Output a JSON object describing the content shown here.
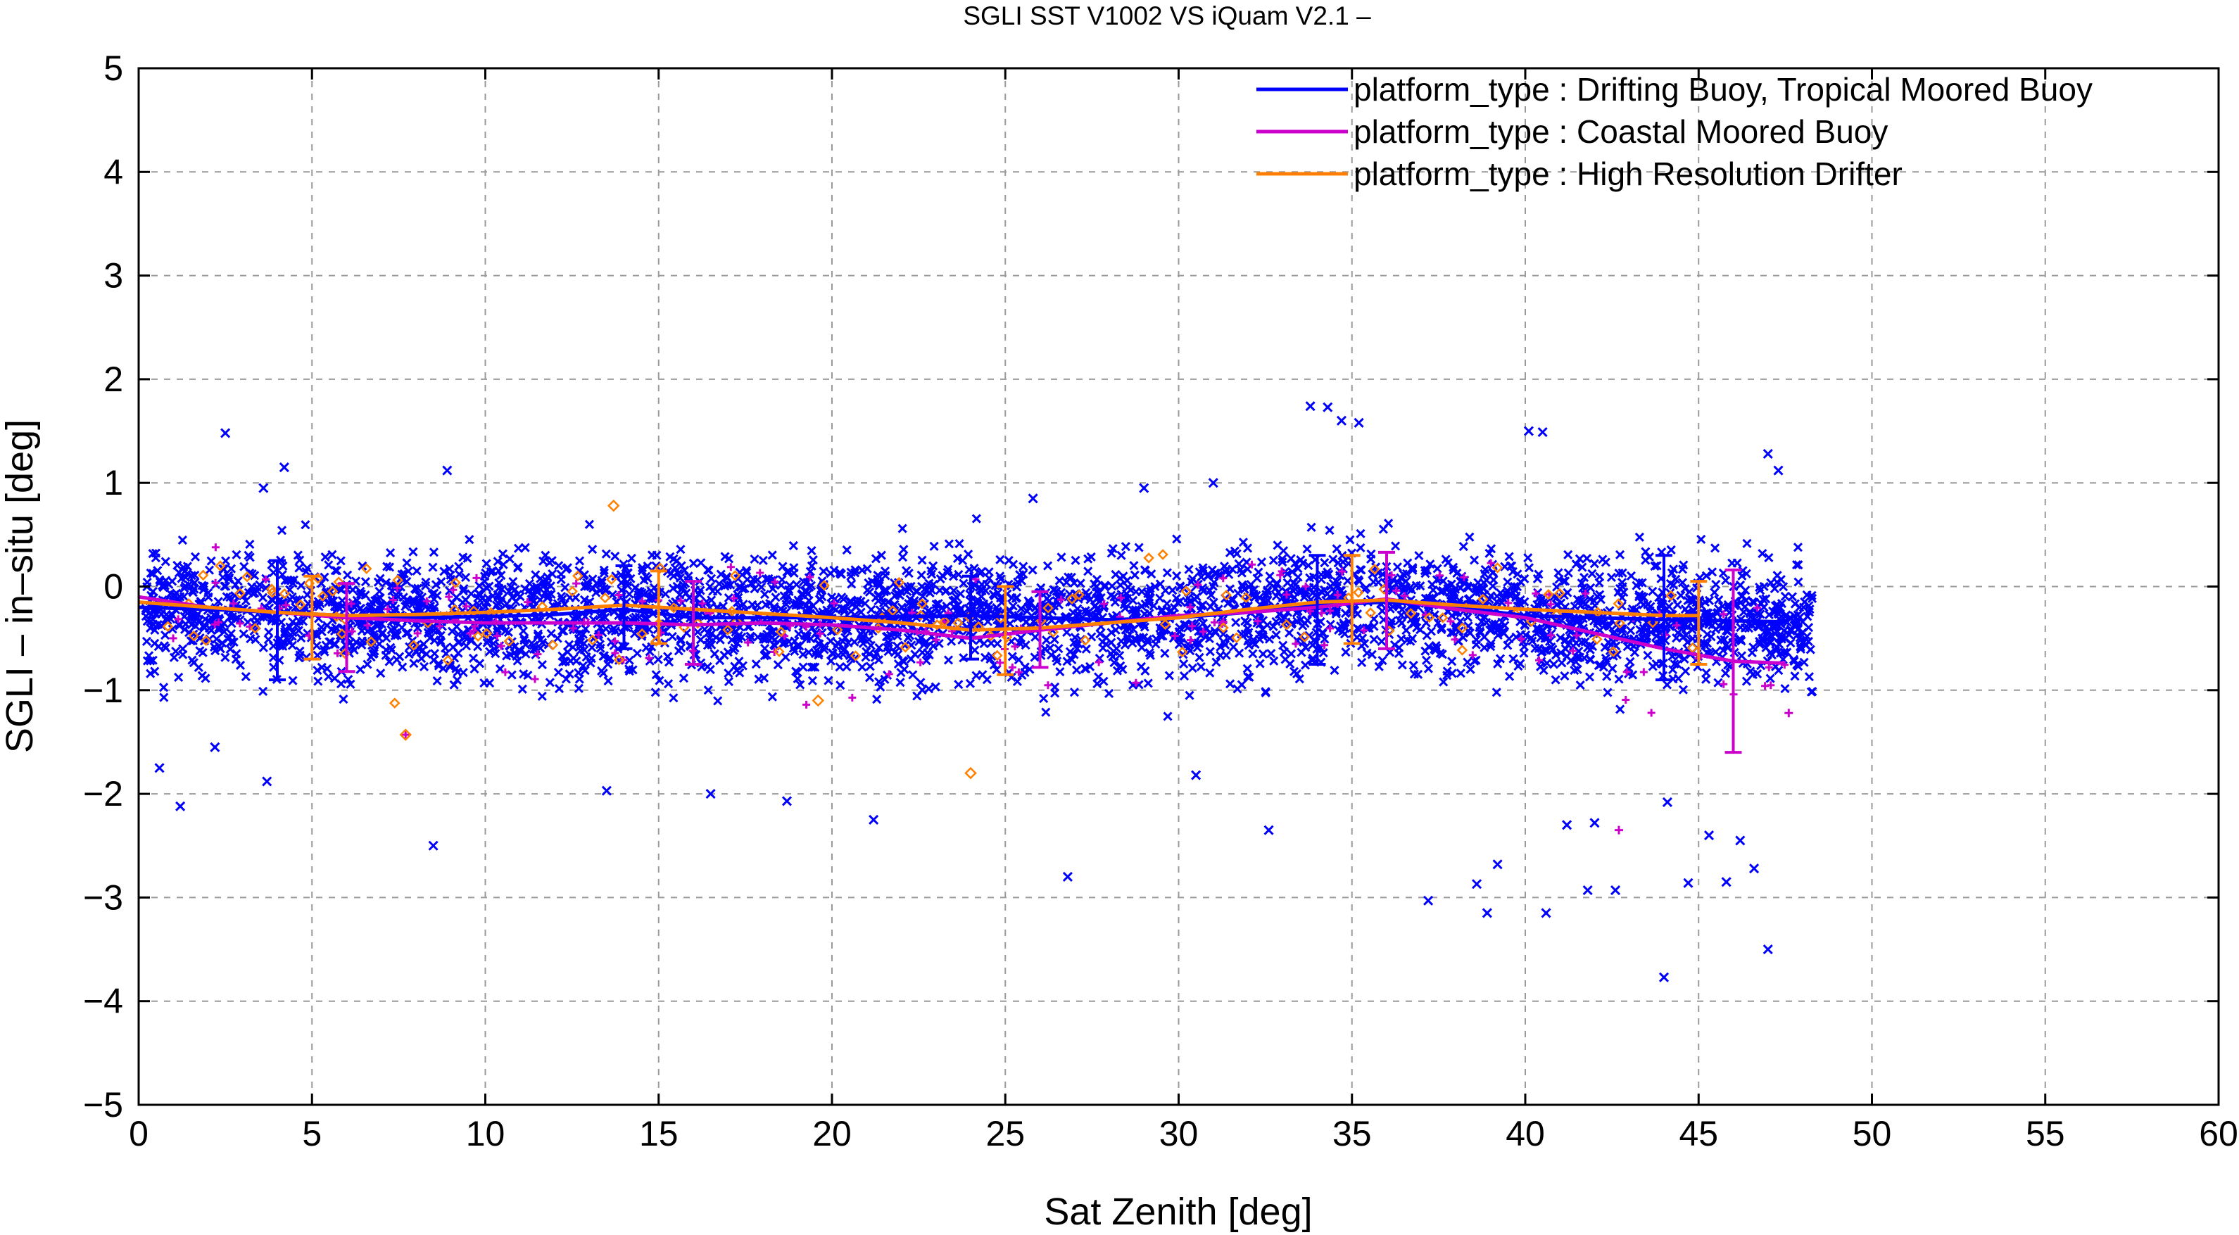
{
  "chart_data": {
    "type": "scatter",
    "title": "SGLI SST V1002 VS iQuam V2.1  –",
    "xlabel": "Sat Zenith [deg]",
    "ylabel": "SGLI – in–situ [deg]",
    "xlim": [
      0,
      60
    ],
    "ylim": [
      -5,
      5
    ],
    "x_ticks": [
      0,
      5,
      10,
      15,
      20,
      25,
      30,
      35,
      40,
      45,
      50,
      55,
      60
    ],
    "y_ticks": [
      -5,
      -4,
      -3,
      -2,
      -1,
      0,
      1,
      2,
      3,
      4,
      5
    ],
    "x_tick_labels": [
      "0",
      "5",
      "10",
      "15",
      "20",
      "25",
      "30",
      "35",
      "40",
      "45",
      "50",
      "55",
      "60"
    ],
    "y_tick_labels": [
      "−5",
      "−4",
      "−3",
      "−2",
      "−1",
      "0",
      "1",
      "2",
      "3",
      "4",
      "5"
    ],
    "grid": true,
    "legend_position": "top-right",
    "series": [
      {
        "name": "platform_type : Drifting Buoy, Tropical Moored Buoy",
        "color": "#0000ff",
        "marker": "x",
        "line": {
          "x": [
            0,
            2,
            4,
            6,
            8,
            10,
            12,
            14,
            16,
            18,
            20,
            22,
            24,
            26,
            28,
            30,
            32,
            34,
            36,
            38,
            40,
            42,
            44,
            46,
            47.5
          ],
          "y": [
            -0.2,
            -0.22,
            -0.25,
            -0.28,
            -0.3,
            -0.29,
            -0.27,
            -0.22,
            -0.3,
            -0.3,
            -0.3,
            -0.29,
            -0.28,
            -0.3,
            -0.32,
            -0.3,
            -0.25,
            -0.18,
            -0.15,
            -0.2,
            -0.28,
            -0.3,
            -0.32,
            -0.33,
            -0.34
          ]
        },
        "errorbars": [
          {
            "x": 4,
            "y": -0.25,
            "lo": -0.9,
            "hi": 0.25
          },
          {
            "x": 14,
            "y": -0.22,
            "lo": -0.6,
            "hi": 0.2
          },
          {
            "x": 24,
            "y": -0.28,
            "lo": -0.7,
            "hi": 0.1
          },
          {
            "x": 34,
            "y": -0.18,
            "lo": -0.75,
            "hi": 0.3
          },
          {
            "x": 44,
            "y": -0.32,
            "lo": -0.9,
            "hi": 0.3
          }
        ],
        "outliers": [
          {
            "x": 2.5,
            "y": 1.48
          },
          {
            "x": 4.2,
            "y": 1.15
          },
          {
            "x": 8.9,
            "y": 1.12
          },
          {
            "x": 3.6,
            "y": 0.95
          },
          {
            "x": 0.6,
            "y": -1.75
          },
          {
            "x": 1.2,
            "y": -2.12
          },
          {
            "x": 3.7,
            "y": -1.88
          },
          {
            "x": 2.2,
            "y": -1.55
          },
          {
            "x": 8.5,
            "y": -2.5
          },
          {
            "x": 13.5,
            "y": -1.97
          },
          {
            "x": 16.5,
            "y": -2.0
          },
          {
            "x": 18.7,
            "y": -2.07
          },
          {
            "x": 21.2,
            "y": -2.25
          },
          {
            "x": 26.8,
            "y": -2.8
          },
          {
            "x": 33.8,
            "y": 1.74
          },
          {
            "x": 34.3,
            "y": 1.73
          },
          {
            "x": 34.7,
            "y": 1.6
          },
          {
            "x": 35.2,
            "y": 1.58
          },
          {
            "x": 40.1,
            "y": 1.5
          },
          {
            "x": 40.5,
            "y": 1.49
          },
          {
            "x": 47.0,
            "y": 1.28
          },
          {
            "x": 47.3,
            "y": 1.12
          },
          {
            "x": 37.2,
            "y": -3.03
          },
          {
            "x": 38.9,
            "y": -3.15
          },
          {
            "x": 39.2,
            "y": -2.68
          },
          {
            "x": 38.6,
            "y": -2.87
          },
          {
            "x": 40.6,
            "y": -3.15
          },
          {
            "x": 41.8,
            "y": -2.93
          },
          {
            "x": 42.6,
            "y": -2.93
          },
          {
            "x": 44.0,
            "y": -3.77
          },
          {
            "x": 44.7,
            "y": -2.86
          },
          {
            "x": 45.3,
            "y": -2.4
          },
          {
            "x": 45.8,
            "y": -2.85
          },
          {
            "x": 46.2,
            "y": -2.45
          },
          {
            "x": 47.0,
            "y": -3.5
          },
          {
            "x": 46.6,
            "y": -2.72
          },
          {
            "x": 41.2,
            "y": -2.3
          },
          {
            "x": 42.0,
            "y": -2.28
          },
          {
            "x": 44.1,
            "y": -2.08
          },
          {
            "x": 32.6,
            "y": -2.35
          },
          {
            "x": 30.5,
            "y": -1.82
          },
          {
            "x": 31.0,
            "y": 1.0
          },
          {
            "x": 29.0,
            "y": 0.95
          },
          {
            "x": 25.8,
            "y": 0.85
          }
        ]
      },
      {
        "name": "platform_type : Coastal Moored Buoy",
        "color": "#cc00cc",
        "marker": "+",
        "line": {
          "x": [
            0,
            2,
            4,
            6,
            8,
            10,
            12,
            14,
            16,
            18,
            20,
            22,
            24,
            26,
            28,
            30,
            32,
            34,
            36,
            38,
            40,
            42,
            44,
            46,
            47.5
          ],
          "y": [
            -0.1,
            -0.2,
            -0.25,
            -0.3,
            -0.33,
            -0.35,
            -0.35,
            -0.35,
            -0.37,
            -0.35,
            -0.37,
            -0.42,
            -0.5,
            -0.42,
            -0.35,
            -0.28,
            -0.25,
            -0.2,
            -0.12,
            -0.22,
            -0.3,
            -0.45,
            -0.6,
            -0.72,
            -0.74
          ]
        },
        "errorbars": [
          {
            "x": 6,
            "y": -0.3,
            "lo": -0.82,
            "hi": 0.03
          },
          {
            "x": 16,
            "y": -0.37,
            "lo": -0.75,
            "hi": 0.05
          },
          {
            "x": 26,
            "y": -0.42,
            "lo": -0.78,
            "hi": -0.05
          },
          {
            "x": 36,
            "y": -0.12,
            "lo": -0.6,
            "hi": 0.33
          },
          {
            "x": 46,
            "y": -0.72,
            "lo": -1.6,
            "hi": 0.16
          }
        ],
        "outliers": [
          {
            "x": 42.7,
            "y": -2.35
          },
          {
            "x": 47.6,
            "y": -1.22
          },
          {
            "x": 7.7,
            "y": -1.43
          }
        ]
      },
      {
        "name": "platform_type : High Resolution Drifter",
        "color": "#ff8000",
        "marker": "diamond",
        "line": {
          "x": [
            0,
            2,
            4,
            6,
            8,
            10,
            12,
            14,
            16,
            18,
            20,
            22,
            24,
            26,
            28,
            30,
            32,
            34,
            36,
            38,
            40,
            42,
            44,
            45
          ],
          "y": [
            -0.15,
            -0.2,
            -0.25,
            -0.28,
            -0.27,
            -0.25,
            -0.22,
            -0.18,
            -0.22,
            -0.26,
            -0.3,
            -0.35,
            -0.42,
            -0.4,
            -0.35,
            -0.3,
            -0.22,
            -0.15,
            -0.13,
            -0.18,
            -0.22,
            -0.25,
            -0.28,
            -0.28
          ]
        },
        "errorbars": [
          {
            "x": 5,
            "y": -0.28,
            "lo": -0.7,
            "hi": 0.1
          },
          {
            "x": 15,
            "y": -0.2,
            "lo": -0.55,
            "hi": 0.15
          },
          {
            "x": 25,
            "y": -0.42,
            "lo": -0.85,
            "hi": 0.0
          },
          {
            "x": 35,
            "y": -0.15,
            "lo": -0.55,
            "hi": 0.3
          },
          {
            "x": 45,
            "y": -0.28,
            "lo": -0.75,
            "hi": 0.05
          }
        ],
        "outliers": [
          {
            "x": 13.7,
            "y": 0.78
          },
          {
            "x": 7.7,
            "y": -1.43
          },
          {
            "x": 24.0,
            "y": -1.8
          },
          {
            "x": 19.6,
            "y": -1.1
          }
        ]
      }
    ]
  }
}
